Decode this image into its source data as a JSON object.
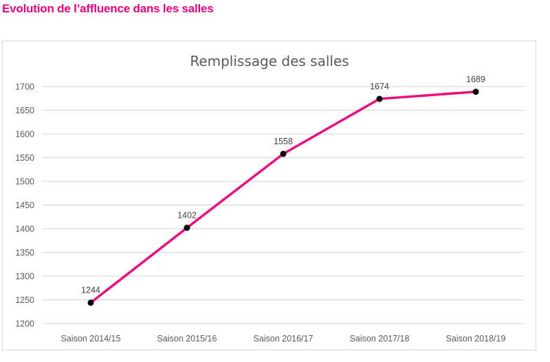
{
  "page": {
    "heading": "Evolution de l’affluence dans les salles",
    "heading_color": "#e6007e"
  },
  "chart_data": {
    "type": "line",
    "title": "Remplissage des salles",
    "xlabel": "",
    "ylabel": "",
    "categories": [
      "Saison 2014/15",
      "Saison 2015/16",
      "Saison 2016/17",
      "Saison 2017/18",
      "Saison 2018/19"
    ],
    "series": [
      {
        "name": "Remplissage des salles",
        "values": [
          1244,
          1402,
          1558,
          1674,
          1689
        ],
        "color": "#ee0a7c",
        "marker_color": "#000000"
      }
    ],
    "ylim": [
      1200,
      1700
    ],
    "yticks": [
      1200,
      1250,
      1300,
      1350,
      1400,
      1450,
      1500,
      1550,
      1600,
      1650,
      1700
    ],
    "grid": true,
    "gridline_color": "#d9d9d9",
    "data_labels": true,
    "legend": "none"
  }
}
